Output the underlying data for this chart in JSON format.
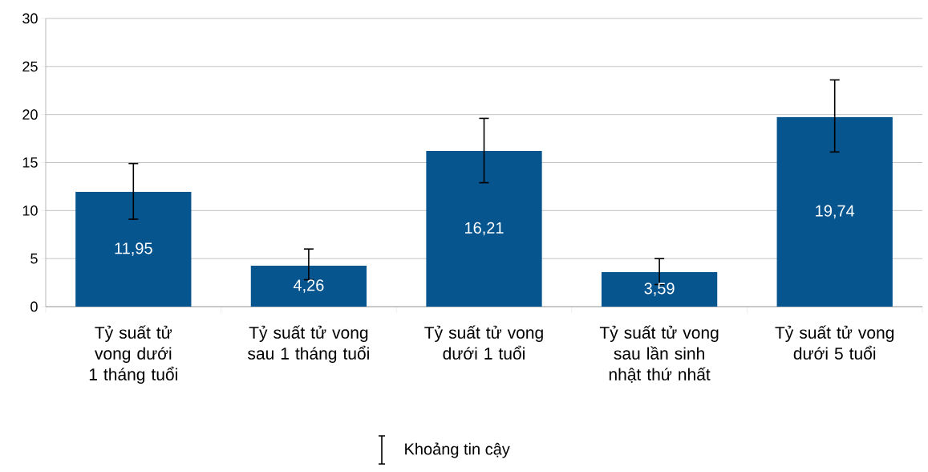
{
  "chart_data": {
    "type": "bar",
    "categories": [
      "Tỷ suất tử vong dưới 1 tháng tuổi",
      "Tỷ suất tử vong sau 1 tháng tuổi",
      "Tỷ suất tử vong dưới 1  tuổi",
      "Tỷ suất tử vong sau lần sinh nhật thứ nhất",
      "Tỷ suất tử vong dưới 5 tuổi"
    ],
    "values": [
      11.95,
      4.26,
      16.21,
      3.59,
      19.74
    ],
    "value_labels": [
      "11,95",
      "4,26",
      "16,21",
      "3,59",
      "19,74"
    ],
    "errors": [
      [
        9.1,
        14.9
      ],
      [
        2.8,
        6.0
      ],
      [
        12.9,
        19.6
      ],
      [
        2.3,
        5.0
      ],
      [
        16.1,
        23.6
      ]
    ],
    "color": "#06558f",
    "ylim": [
      0,
      30
    ],
    "yticks": [
      0,
      5,
      10,
      15,
      20,
      25,
      30
    ],
    "grid": "y",
    "annotations": [
      "Khoảng tin cậy"
    ]
  }
}
